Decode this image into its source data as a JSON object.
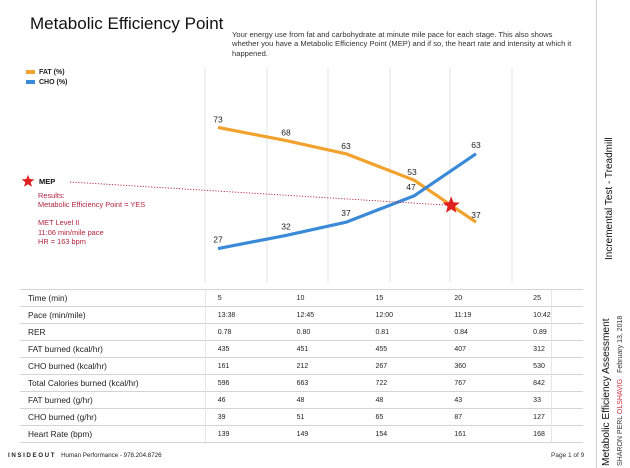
{
  "page_title": "Metabolic Efficiency Point",
  "description": "Your energy use from fat and carbohydrate at minute mile pace for each stage. This also shows whether you have a Metabolic Efficiency Point (MEP) and if so, the heart rate and intensity at which it happened.",
  "mep": {
    "label": "MEP",
    "results_heading": "Results:",
    "results_value": "Metabolic Efficiency Point = YES",
    "met_level": "MET Level II",
    "pace": "11:06 min/mile pace",
    "hr": "HR = 163 bpm",
    "marker_color": "#e02020"
  },
  "chart_data": {
    "type": "line",
    "categories": [
      "5",
      "10",
      "15",
      "20",
      "25"
    ],
    "series": [
      {
        "name": "FAT (%)",
        "color": "#f2a22e",
        "values": [
          73,
          68,
          63,
          53,
          37
        ]
      },
      {
        "name": "CHO (%)",
        "color": "#3a8ad8",
        "values": [
          27,
          32,
          37,
          47,
          63
        ]
      }
    ],
    "crossover_fraction": 0.6,
    "ylim": [
      20,
      80
    ],
    "legend": "top-left",
    "grid": "vertical"
  },
  "table": {
    "rows": [
      {
        "label": "Time (min)",
        "values": [
          "5",
          "10",
          "15",
          "20",
          "25"
        ]
      },
      {
        "label": "Pace (min/mile)",
        "values": [
          "13:38",
          "12:45",
          "12:00",
          "11:19",
          "10:42"
        ]
      },
      {
        "label": "RER",
        "values": [
          "0.78",
          "0.80",
          "0.81",
          "0.84",
          "0.89"
        ]
      },
      {
        "label": "FAT burned (kcal/hr)",
        "values": [
          "435",
          "451",
          "455",
          "407",
          "312"
        ]
      },
      {
        "label": "CHO burned (kcal/hr)",
        "values": [
          "161",
          "212",
          "267",
          "360",
          "530"
        ]
      },
      {
        "label": "Total Calories burned (kcal/hr)",
        "values": [
          "596",
          "663",
          "722",
          "767",
          "842"
        ]
      },
      {
        "label": "FAT burned (g/hr)",
        "values": [
          "46",
          "48",
          "48",
          "43",
          "33"
        ]
      },
      {
        "label": "CHO burned (g/hr)",
        "values": [
          "39",
          "51",
          "65",
          "87",
          "127"
        ]
      },
      {
        "label": "Heart Rate (bpm)",
        "values": [
          "139",
          "149",
          "154",
          "161",
          "168"
        ]
      }
    ]
  },
  "footer": {
    "brand": "INSIDEOUT",
    "text": "Human Performance - 978.204.8726",
    "page": "Page 1 of 9"
  },
  "sidebar": {
    "test_name": "Incremental Test - Treadmill",
    "assessment": "Metabolic Efficiency Assessment",
    "person_name": "SHARON PERL",
    "person_suffix": "OLSHAVIG",
    "date": "February 13, 2018"
  }
}
